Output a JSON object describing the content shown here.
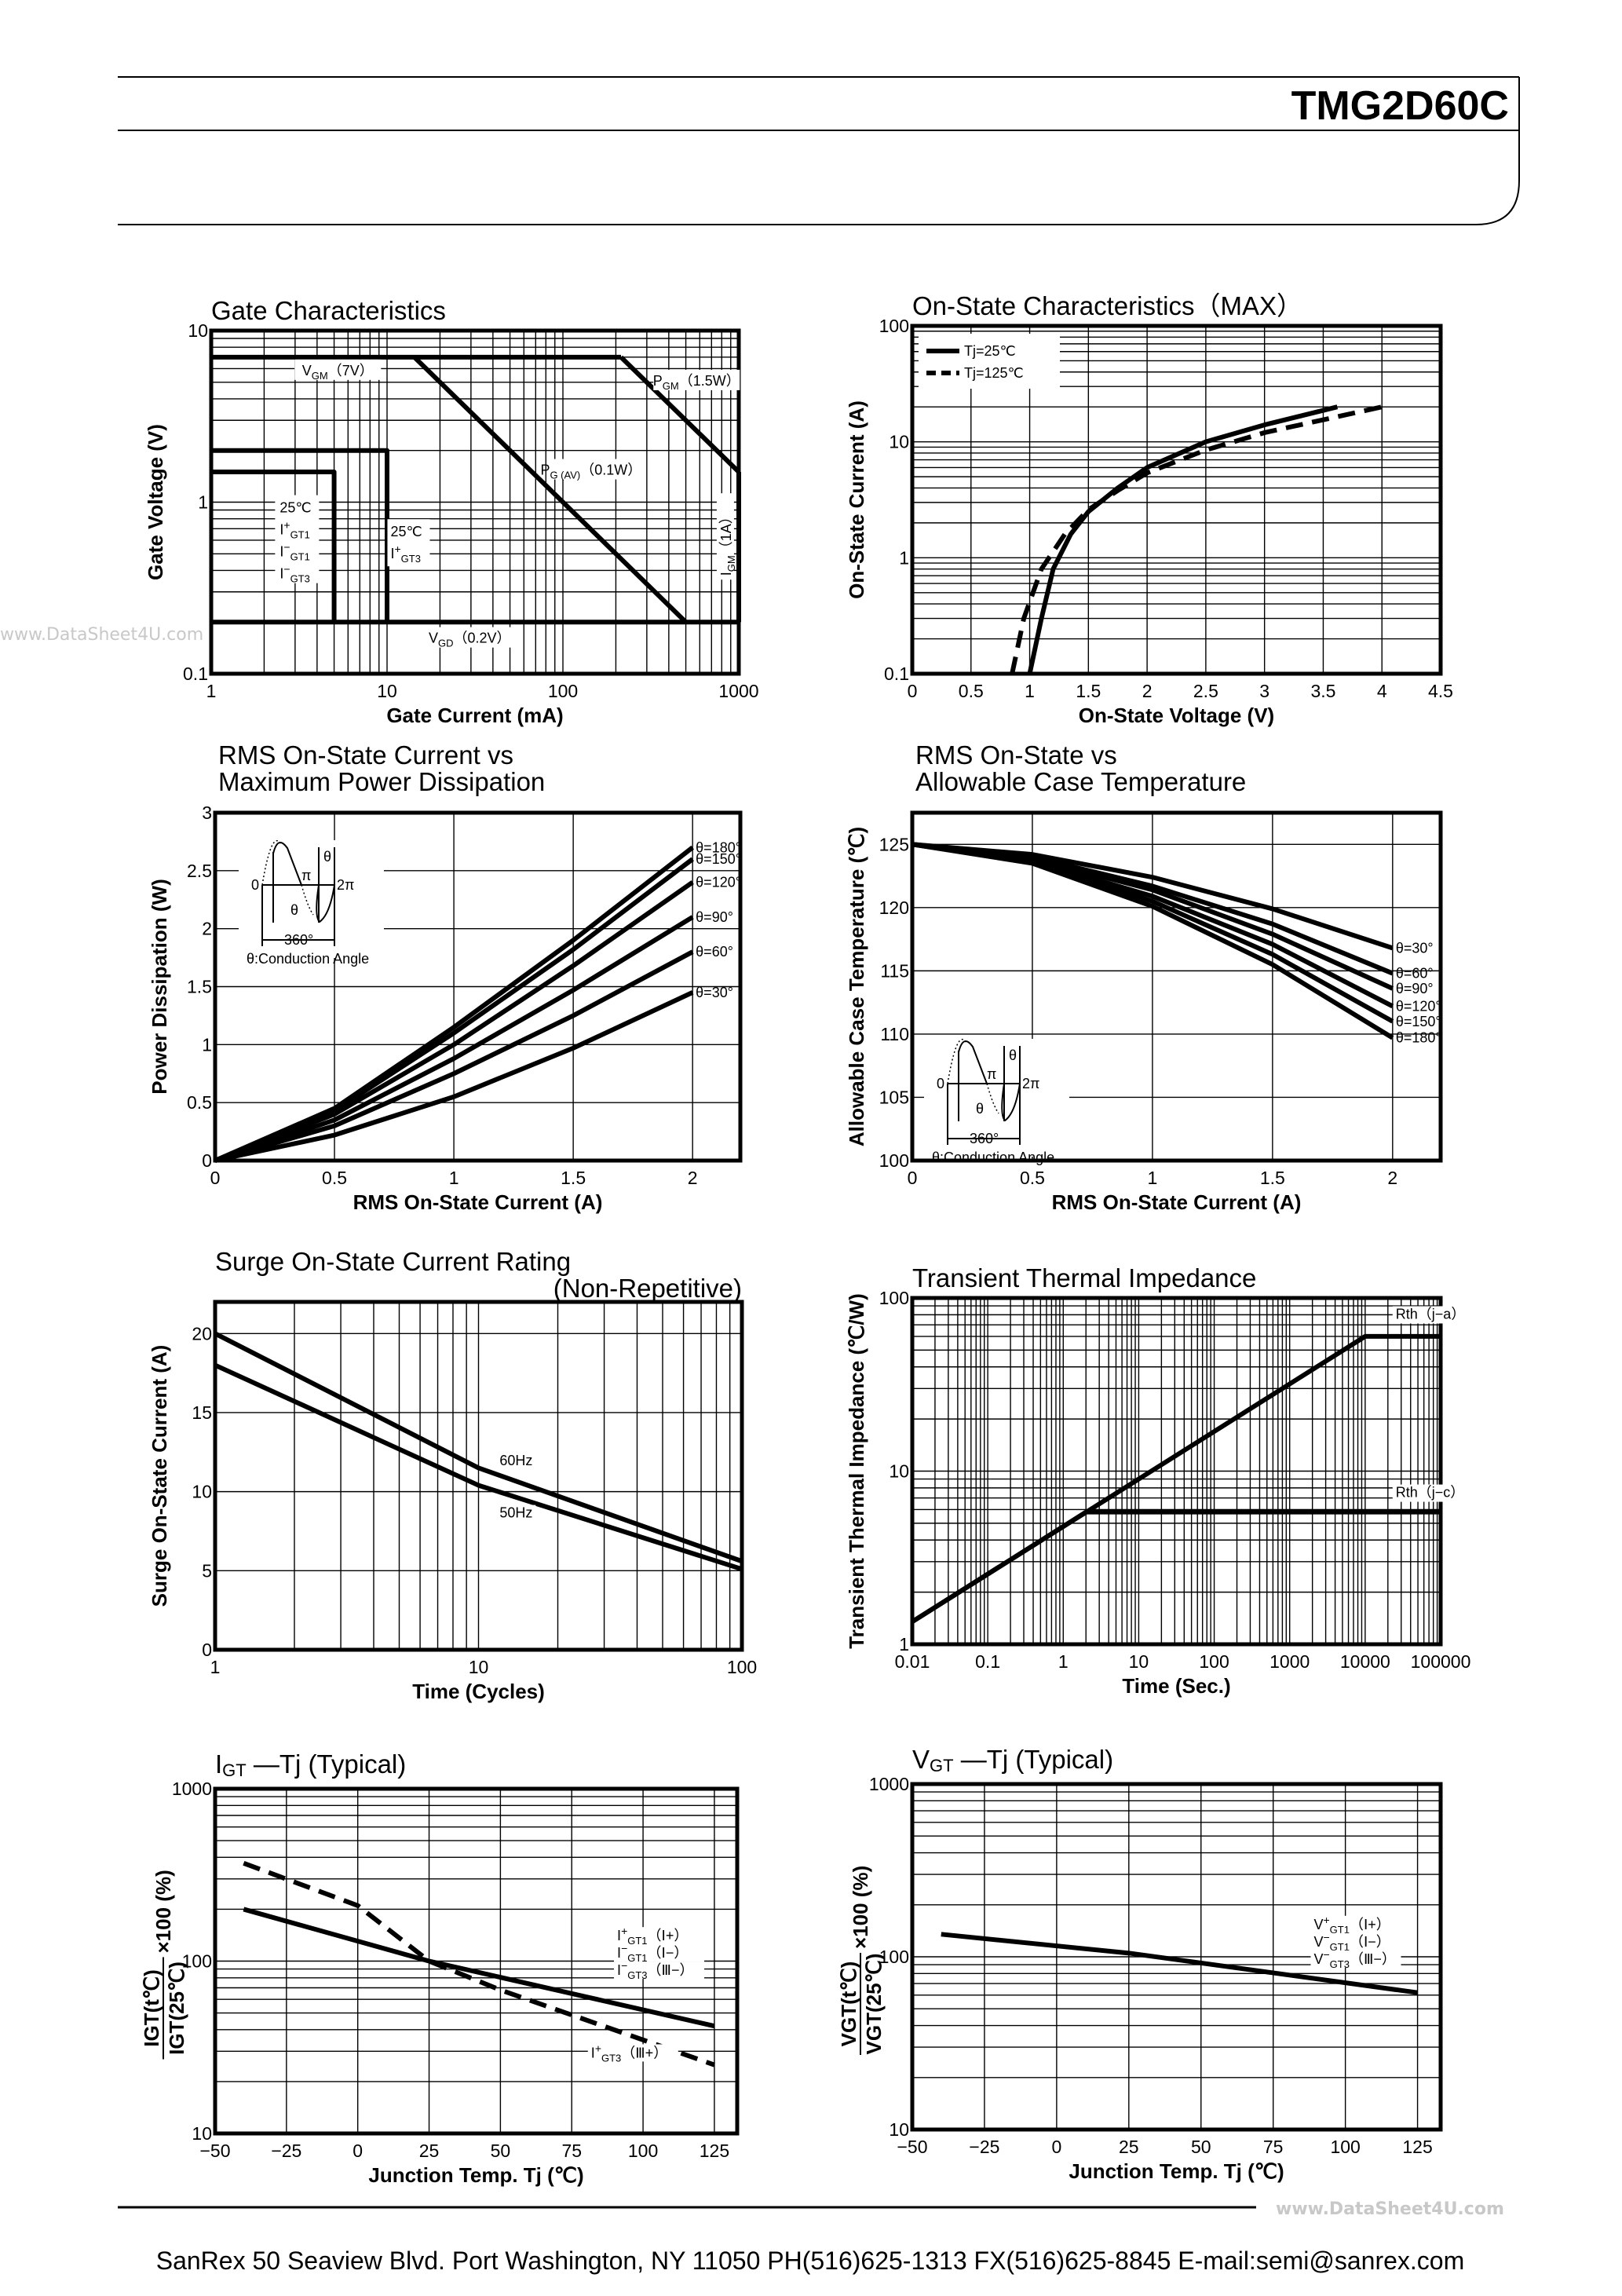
{
  "header": {
    "part_number": "TMG2D60C"
  },
  "watermark": "www.DataSheet4U.com",
  "footer": {
    "text": "SanRex 50 Seaview Blvd. Port Washington, NY 11050 PH(516)625-1313 FX(516)625-8845 E-mail:semi@sanrex.com"
  },
  "inset": {
    "zero": "0",
    "pi": "π",
    "two_pi": "2π",
    "theta": "θ",
    "deg360": "360°",
    "caption": "θ:Conduction Angle"
  },
  "chart_data": [
    {
      "id": "gate",
      "type": "line",
      "title": "Gate Characteristics",
      "xlabel": "Gate Current (mA)",
      "ylabel": "Gate Voltage (V)",
      "xscale": "log",
      "yscale": "log",
      "xlim": [
        1,
        1000
      ],
      "ylim": [
        0.1,
        10
      ],
      "xticks": [
        1,
        10,
        100,
        1000
      ],
      "yticks": [
        0.1,
        1,
        10
      ],
      "grid": true,
      "series": [
        {
          "x": [
            1,
            214
          ],
          "y": [
            7,
            7
          ]
        },
        {
          "x": [
            214,
            1000
          ],
          "y": [
            7,
            1.5
          ]
        },
        {
          "x": [
            14.3,
            500
          ],
          "y": [
            7,
            0.2
          ]
        },
        {
          "x": [
            1,
            1000
          ],
          "y": [
            0.2,
            0.2
          ]
        },
        {
          "x": [
            1000,
            1000
          ],
          "y": [
            0.2,
            1.5
          ]
        },
        {
          "x": [
            1,
            5,
            5
          ],
          "y": [
            1.5,
            1.5,
            0.2
          ]
        },
        {
          "x": [
            1,
            10,
            10
          ],
          "y": [
            2,
            2,
            0.2
          ]
        }
      ],
      "annotations": [
        {
          "base": "V",
          "sub": "GM",
          "tail": "（7V）"
        },
        {
          "base": "P",
          "sub": "GM",
          "tail": "（1.5W）"
        },
        {
          "base": "P",
          "sub": "G (AV)",
          "tail": "（0.1W）"
        },
        {
          "base": "V",
          "sub": "GD",
          "tail": "（0.2V）"
        },
        {
          "base": "I",
          "sub": "GM",
          "tail": "（1A）"
        },
        {
          "base": "25℃"
        },
        {
          "base": "I",
          "sup": "+",
          "sub": "GT1"
        },
        {
          "base": "I",
          "sup": "−",
          "sub": "GT1"
        },
        {
          "base": "I",
          "sup": "−",
          "sub": "GT3"
        },
        {
          "base": "25℃"
        },
        {
          "base": "I",
          "sup": "+",
          "sub": "GT3"
        }
      ]
    },
    {
      "id": "onstate",
      "type": "line",
      "title": "On-State Characteristics（MAX）",
      "xlabel": "On-State Voltage (V)",
      "ylabel": "On-State Current (A)",
      "xscale": "linear",
      "yscale": "log",
      "xlim": [
        0,
        4.5
      ],
      "ylim": [
        0.1,
        100
      ],
      "xticks": [
        0,
        0.5,
        1,
        1.5,
        2,
        2.5,
        3,
        3.5,
        4,
        4.5
      ],
      "yticks": [
        0.1,
        1,
        10,
        100
      ],
      "grid": true,
      "legend_position": "top-left",
      "series": [
        {
          "name": "Tj=25℃",
          "style": "solid",
          "x": [
            1.0,
            1.1,
            1.2,
            1.35,
            1.5,
            1.75,
            2.0,
            2.5,
            3.0,
            3.62
          ],
          "y": [
            0.1,
            0.3,
            0.8,
            1.6,
            2.5,
            4,
            6,
            10,
            14,
            20
          ]
        },
        {
          "name": "Tj=125℃",
          "style": "dashed",
          "x": [
            0.85,
            0.95,
            1.1,
            1.3,
            1.5,
            1.75,
            2.0,
            2.5,
            3.0,
            4.0
          ],
          "y": [
            0.1,
            0.3,
            0.8,
            1.6,
            2.6,
            3.8,
            5.4,
            8.5,
            12,
            20
          ]
        }
      ]
    },
    {
      "id": "power",
      "type": "line",
      "title": "RMS On-State Current vs",
      "title2": "Maximum Power Dissipation",
      "xlabel": "RMS On-State Current (A)",
      "ylabel": "Power Dissipation (W)",
      "xscale": "linear",
      "yscale": "linear",
      "xlim": [
        0,
        2.2
      ],
      "ylim": [
        0,
        3
      ],
      "xticks": [
        0,
        0.5,
        1,
        1.5,
        2
      ],
      "yticks": [
        0,
        0.5,
        1,
        1.5,
        2,
        2.5,
        3
      ],
      "grid": true,
      "series": [
        {
          "name": "θ=180°",
          "x": [
            0,
            0.5,
            1,
            1.5,
            2
          ],
          "y": [
            0,
            0.45,
            1.15,
            1.9,
            2.7
          ]
        },
        {
          "name": "θ=150°",
          "x": [
            0,
            0.5,
            1,
            1.5,
            2
          ],
          "y": [
            0,
            0.43,
            1.1,
            1.82,
            2.6
          ]
        },
        {
          "name": "θ=120°",
          "x": [
            0,
            0.5,
            1,
            1.5,
            2
          ],
          "y": [
            0,
            0.4,
            1.0,
            1.68,
            2.4
          ]
        },
        {
          "name": "θ=90°",
          "x": [
            0,
            0.5,
            1,
            1.5,
            2
          ],
          "y": [
            0,
            0.35,
            0.88,
            1.47,
            2.1
          ]
        },
        {
          "name": "θ=60°",
          "x": [
            0,
            0.5,
            1,
            1.5,
            2
          ],
          "y": [
            0,
            0.3,
            0.75,
            1.25,
            1.8
          ]
        },
        {
          "name": "θ=30°",
          "x": [
            0,
            0.5,
            1,
            1.5,
            2
          ],
          "y": [
            0,
            0.22,
            0.55,
            0.97,
            1.45
          ]
        }
      ]
    },
    {
      "id": "casetemp",
      "type": "line",
      "title": "RMS On-State vs",
      "title2": "Allowable Case Temperature",
      "xlabel": "RMS On-State Current (A)",
      "ylabel": "Allowable Case Temperature (℃)",
      "xscale": "linear",
      "yscale": "linear",
      "xlim": [
        0,
        2.2
      ],
      "ylim": [
        100,
        127.5
      ],
      "xticks": [
        0,
        0.5,
        1,
        1.5,
        2
      ],
      "yticks": [
        100,
        105,
        110,
        115,
        120,
        125
      ],
      "grid": true,
      "series": [
        {
          "name": "θ=30°",
          "x": [
            0,
            0.5,
            1,
            1.5,
            2
          ],
          "y": [
            125,
            124.2,
            122.4,
            119.9,
            116.8
          ]
        },
        {
          "name": "θ=60°",
          "x": [
            0,
            0.5,
            1,
            1.5,
            2
          ],
          "y": [
            125,
            124.0,
            121.7,
            118.7,
            114.8
          ]
        },
        {
          "name": "θ=90°",
          "x": [
            0,
            0.5,
            1,
            1.5,
            2
          ],
          "y": [
            125,
            123.9,
            121.4,
            117.9,
            113.6
          ]
        },
        {
          "name": "θ=120°",
          "x": [
            0,
            0.5,
            1,
            1.5,
            2
          ],
          "y": [
            125,
            123.7,
            120.9,
            117.1,
            112.2
          ]
        },
        {
          "name": "θ=150°",
          "x": [
            0,
            0.5,
            1,
            1.5,
            2
          ],
          "y": [
            125,
            123.6,
            120.5,
            116.3,
            111.0
          ]
        },
        {
          "name": "θ=180°",
          "x": [
            0,
            0.5,
            1,
            1.5,
            2
          ],
          "y": [
            125,
            123.5,
            120.1,
            115.5,
            109.7
          ]
        }
      ]
    },
    {
      "id": "surge",
      "type": "line",
      "title": "Surge On-State Current Rating",
      "title2": "(Non-Repetitive)",
      "xlabel": "Time (Cycles)",
      "ylabel": "Surge On-State Current (A)",
      "xscale": "log",
      "yscale": "linear",
      "xlim": [
        1,
        100
      ],
      "ylim": [
        0,
        22
      ],
      "xticks": [
        1,
        10,
        100
      ],
      "yticks": [
        0,
        5,
        10,
        15,
        20
      ],
      "grid": true,
      "series": [
        {
          "name": "60Hz",
          "x": [
            1,
            10,
            100
          ],
          "y": [
            20,
            11.5,
            5.6
          ]
        },
        {
          "name": "50Hz",
          "x": [
            1,
            10,
            100
          ],
          "y": [
            18,
            10.4,
            5.1
          ]
        }
      ]
    },
    {
      "id": "transient",
      "type": "line",
      "title": "Transient Thermal Impedance",
      "xlabel": "Time (Sec.)",
      "ylabel": "Transient Thermal Impedance (℃/W)",
      "xscale": "log",
      "yscale": "log",
      "xlim": [
        0.01,
        100000
      ],
      "ylim": [
        1,
        100
      ],
      "xticks": [
        0.01,
        0.1,
        1,
        10,
        100,
        1000,
        10000,
        100000
      ],
      "yticks": [
        1,
        10,
        100
      ],
      "grid": true,
      "series": [
        {
          "name": "Rth（j−a）",
          "x": [
            0.01,
            10000,
            100000
          ],
          "y": [
            1.35,
            60,
            60
          ]
        },
        {
          "name": "Rth（j−c）",
          "x": [
            0.01,
            2,
            100000
          ],
          "y": [
            1.35,
            5.8,
            5.8
          ]
        }
      ]
    },
    {
      "id": "igt",
      "type": "line",
      "title": "I",
      "title_sub": "GT",
      "title_tail": " —Tj (Typical)",
      "xlabel": "Junction Temp. Tj (℃)",
      "ylabel_num": "IGT(t℃)",
      "ylabel_den": "IGT(25℃)",
      "ylabel_tail": "×100 (%)",
      "xscale": "linear",
      "yscale": "log",
      "xlim": [
        -50,
        133
      ],
      "ylim": [
        10,
        1000
      ],
      "xticks": [
        -50,
        -25,
        0,
        25,
        50,
        75,
        100,
        125
      ],
      "yticks": [
        10,
        100,
        1000
      ],
      "grid": true,
      "series": [
        {
          "style": "solid",
          "x": [
            -40,
            25,
            125
          ],
          "y": [
            200,
            100,
            42
          ]
        },
        {
          "style": "dashed",
          "x": [
            -40,
            0,
            25,
            50,
            125
          ],
          "y": [
            370,
            210,
            100,
            68,
            25
          ]
        }
      ],
      "annotations": [
        {
          "base": "I",
          "sup": "+",
          "sub": "GT1",
          "tail": "（Ⅰ+）"
        },
        {
          "base": "I",
          "sup": "−",
          "sub": "GT1",
          "tail": "（Ⅰ−）"
        },
        {
          "base": "I",
          "sup": "−",
          "sub": "GT3",
          "tail": "（Ⅲ−）"
        },
        {
          "base": "I",
          "sup": "+",
          "sub": "GT3",
          "tail": "（Ⅲ+）"
        }
      ]
    },
    {
      "id": "vgt",
      "type": "line",
      "title": "V",
      "title_sub": "GT",
      "title_tail": " —Tj (Typical)",
      "xlabel": "Junction Temp. Tj (℃)",
      "ylabel_num": "VGT(t℃)",
      "ylabel_den": "VGT(25℃)",
      "ylabel_tail": "×100 (%)",
      "xscale": "linear",
      "yscale": "log",
      "xlim": [
        -50,
        133
      ],
      "ylim": [
        10,
        1000
      ],
      "xticks": [
        -50,
        -25,
        0,
        25,
        50,
        75,
        100,
        125
      ],
      "yticks": [
        10,
        100,
        1000
      ],
      "grid": true,
      "series": [
        {
          "style": "solid",
          "x": [
            -40,
            25,
            125
          ],
          "y": [
            135,
            105,
            62
          ]
        }
      ],
      "annotations": [
        {
          "base": "V",
          "sup": "+",
          "sub": "GT1",
          "tail": "（Ⅰ+）"
        },
        {
          "base": "V",
          "sup": "−",
          "sub": "GT1",
          "tail": "（Ⅰ−）"
        },
        {
          "base": "V",
          "sup": "−",
          "sub": "GT3",
          "tail": "（Ⅲ−）"
        }
      ]
    }
  ]
}
